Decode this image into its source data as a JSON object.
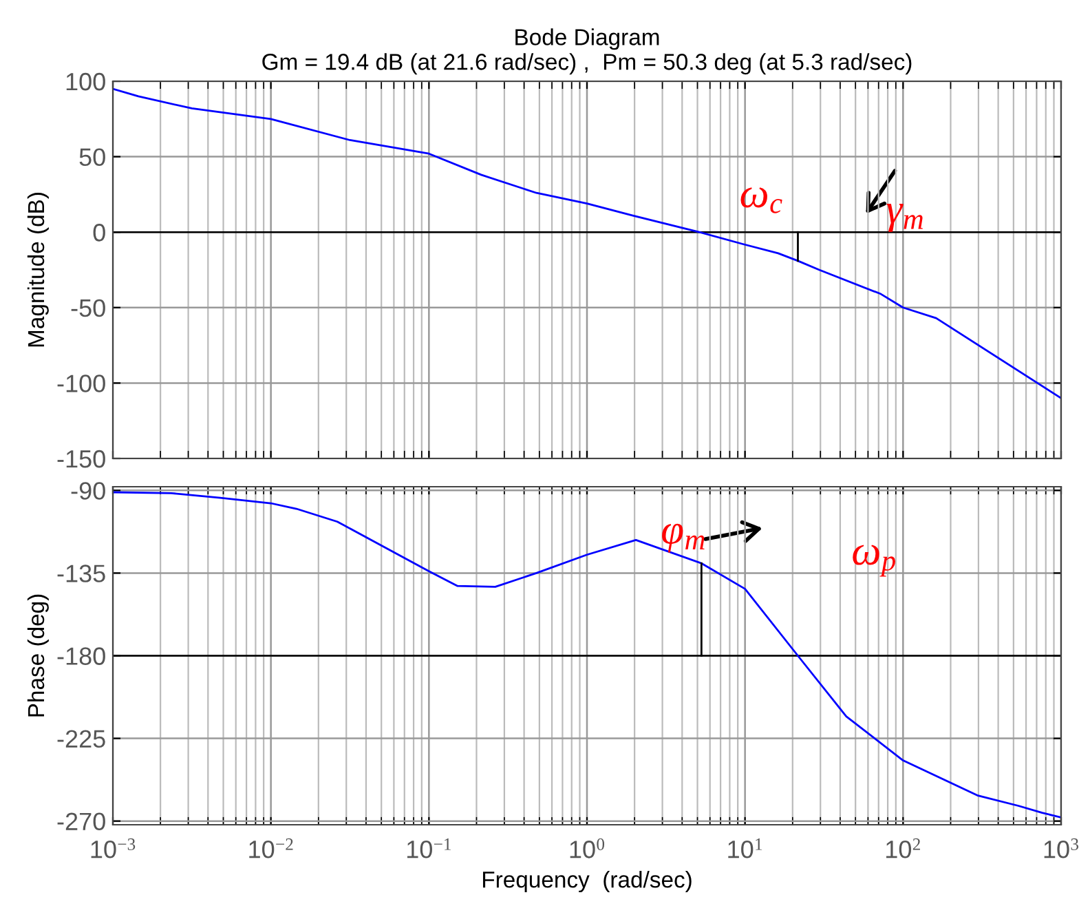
{
  "chart_data": [
    {
      "type": "line",
      "title": "Bode Diagram",
      "subtitle": "Gm = 19.4 dB (at 21.6 rad/sec) ,  Pm = 50.3 deg (at 5.3 rad/sec)",
      "ylabel": "Magnitude (dB)",
      "series": [
        {
          "color": "#0000ff",
          "x": [
            0.001,
            0.00145,
            0.00316,
            0.01,
            0.0316,
            0.1,
            0.214,
            0.479,
            1,
            1.95,
            5.13,
            9.77,
            16.2,
            21.6,
            29.5,
            72.4,
            100,
            162,
            1000
          ],
          "values": [
            95,
            90,
            82,
            75,
            61,
            52,
            38,
            26,
            19,
            11,
            0,
            -8,
            -14,
            -19,
            -25,
            -41,
            -50,
            -57,
            -110
          ]
        },
        {
          "color": "#000000",
          "x": [
            21.6,
            21.6
          ],
          "values": [
            0,
            -19
          ]
        }
      ],
      "log": "x",
      "xlim": [
        0.001,
        1000
      ],
      "xticks": [
        {
          "value": 0.001,
          "label": null
        },
        {
          "value": 0.01,
          "label": null
        },
        {
          "value": 0.1,
          "label": null
        },
        {
          "value": 1,
          "label": null
        },
        {
          "value": 10,
          "label": null
        },
        {
          "value": 100,
          "label": null
        },
        {
          "value": 1000,
          "label": null
        }
      ],
      "ylim": [
        -150,
        100
      ],
      "yticks": [
        -150,
        -100,
        -50,
        0,
        50,
        100
      ],
      "grid": true,
      "tick_labels": "y",
      "ref_lines": [
        {
          "axis": "y",
          "value": 0,
          "color": "#000000"
        }
      ],
      "annotations": [
        "ω$_{c}$",
        "γ$_{m}$"
      ]
    },
    {
      "type": "line",
      "xlabel": "Frequency  (rad/sec)",
      "ylabel": "Phase (deg)",
      "series": [
        {
          "color": "#0000ff",
          "x": [
            0.001,
            0.00234,
            0.00479,
            0.01,
            0.0145,
            0.0263,
            0.0525,
            0.1,
            0.151,
            0.263,
            0.479,
            1,
            2.04,
            5.3,
            10,
            21.6,
            43.7,
            100,
            295,
            537,
            759,
            1000
          ],
          "values": [
            -91,
            -91.5,
            -94,
            -97,
            -100,
            -107,
            -121,
            -134,
            -142,
            -142.5,
            -135,
            -125,
            -117,
            -129.7,
            -143.6,
            -180,
            -213,
            -237,
            -256,
            -261.7,
            -265.5,
            -268
          ]
        },
        {
          "color": "#000000",
          "x": [
            5.3,
            5.3
          ],
          "values": [
            -180,
            -129.7
          ]
        }
      ],
      "log": "x",
      "xlim": [
        0.001,
        1000
      ],
      "xticks": [
        {
          "value": 0.001,
          "label": "10$^{−3}$"
        },
        {
          "value": 0.01,
          "label": "10$^{−2}$"
        },
        {
          "value": 0.1,
          "label": "10$^{−1}$"
        },
        {
          "value": 1,
          "label": "10$^{0}$"
        },
        {
          "value": 10,
          "label": "10$^{1}$"
        },
        {
          "value": 100,
          "label": "10$^{2}$"
        },
        {
          "value": 1000,
          "label": "10$^{3}$"
        }
      ],
      "ylim": [
        -272,
        -88
      ],
      "yticks": [
        -270,
        -225,
        -180,
        -135,
        -90
      ],
      "grid": true,
      "ref_lines": [
        {
          "axis": "y",
          "value": -180,
          "color": "#000000"
        }
      ],
      "annotations": [
        "φ$_{m}$",
        "ω$_{p}$"
      ]
    }
  ]
}
